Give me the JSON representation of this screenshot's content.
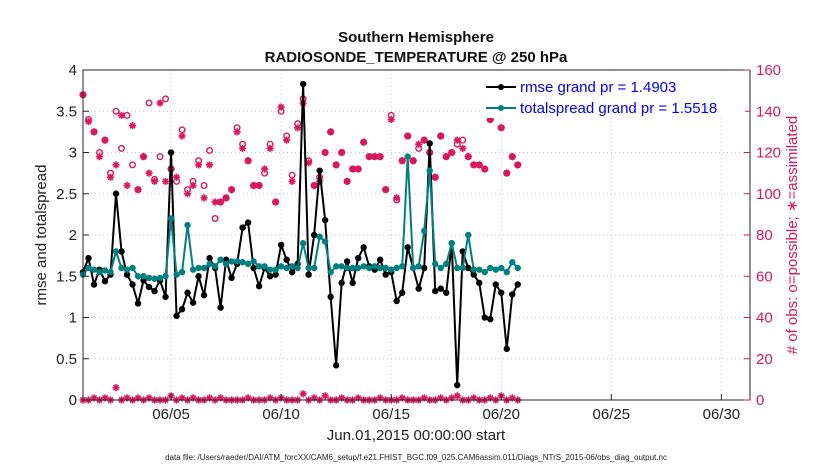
{
  "chart_data": {
    "type": "line",
    "title": "Southern Hemisphere",
    "subtitle": "RADIOSONDE_TEMPERATURE @ 250 hPa",
    "xlabel": "Jun.01,2015 00:00:00 start",
    "ylabel": "rmse and totalspread",
    "y2label": "# of obs: o=possible; ∗=assimilated",
    "footer": "data file: /Users/raeder/DAI/ATM_forcXX/CAM6_setup/f.e21.FHIST_BGC.f09_025.CAM6assim.011/Diags_NTrS_2015-06/obs_diag_output.nc",
    "xlim": [
      1.0,
      31.3
    ],
    "ylim": [
      0,
      4
    ],
    "y2lim": [
      0,
      160
    ],
    "yticks": [
      "0",
      "0.5",
      "1",
      "1.5",
      "2",
      "2.5",
      "3",
      "3.5",
      "4"
    ],
    "y2ticks": [
      "0",
      "20",
      "40",
      "60",
      "80",
      "100",
      "120",
      "140",
      "160"
    ],
    "xticks": [
      {
        "value": 5,
        "label": "06/05"
      },
      {
        "value": 10,
        "label": "06/10"
      },
      {
        "value": 15,
        "label": "06/15"
      },
      {
        "value": 20,
        "label": "06/20"
      },
      {
        "value": 25,
        "label": "06/25"
      },
      {
        "value": 30,
        "label": "06/30"
      }
    ],
    "step_days": 0.25,
    "x_start": 1.0,
    "series": [
      {
        "name": "rmse grand pr = 1.4903",
        "color": "#000000",
        "axis": "left",
        "values": [
          1.55,
          1.72,
          1.4,
          1.58,
          1.44,
          1.52,
          2.5,
          1.8,
          1.52,
          1.4,
          1.17,
          1.45,
          1.37,
          1.32,
          1.45,
          1.25,
          3.0,
          1.02,
          1.1,
          1.3,
          1.18,
          1.5,
          1.27,
          1.72,
          1.6,
          1.12,
          1.7,
          1.48,
          1.65,
          2.09,
          2.15,
          1.6,
          1.38,
          1.6,
          1.5,
          1.52,
          1.88,
          1.7,
          1.55,
          1.65,
          3.83,
          1.52,
          2.0,
          2.78,
          2.18,
          1.25,
          0.42,
          1.42,
          1.68,
          1.42,
          1.72,
          1.85,
          1.62,
          1.58,
          1.7,
          1.52,
          1.55,
          1.2,
          1.3,
          1.85,
          1.6,
          1.35,
          1.6,
          3.11,
          1.32,
          1.35,
          1.3,
          1.9,
          0.18,
          1.8,
          1.6,
          1.52,
          1.42,
          1.0,
          0.98,
          1.4,
          1.3,
          0.62,
          1.28,
          1.4
        ]
      },
      {
        "name": "totalspread grand pr = 1.5518",
        "color": "#008080",
        "axis": "left",
        "values": [
          1.52,
          1.6,
          1.58,
          1.55,
          1.57,
          1.55,
          1.8,
          1.6,
          1.58,
          1.6,
          1.5,
          1.5,
          1.48,
          1.47,
          1.48,
          1.5,
          2.2,
          1.52,
          1.55,
          2.12,
          1.58,
          1.6,
          1.6,
          1.65,
          1.62,
          1.7,
          1.65,
          1.68,
          1.68,
          1.67,
          1.65,
          1.68,
          1.62,
          1.62,
          1.58,
          1.58,
          1.62,
          1.6,
          1.62,
          1.6,
          1.9,
          1.6,
          1.6,
          1.98,
          1.92,
          1.55,
          1.62,
          1.62,
          1.6,
          1.6,
          1.6,
          1.62,
          1.6,
          1.62,
          1.6,
          1.6,
          1.58,
          1.6,
          1.62,
          2.95,
          1.6,
          1.62,
          2.05,
          2.78,
          1.65,
          1.6,
          1.65,
          1.9,
          1.6,
          1.6,
          2.0,
          1.58,
          1.58,
          1.55,
          1.6,
          1.58,
          1.6,
          1.55,
          1.67,
          1.6
        ]
      }
    ],
    "obs_possible": [
      148,
      136,
      130,
      120,
      126,
      110,
      140,
      122,
      138,
      114,
      102,
      118,
      144,
      107,
      118,
      146,
      112,
      106,
      131,
      102,
      106,
      116,
      104,
      121,
      88,
      96,
      98,
      102,
      132,
      124,
      116,
      104,
      104,
      110,
      124,
      96,
      140,
      128,
      109,
      134,
      146,
      116,
      104,
      108,
      120,
      130,
      114,
      120,
      106,
      112,
      112,
      125,
      118,
      118,
      118,
      102,
      138,
      97,
      116,
      128,
      116,
      122,
      126,
      120,
      108,
      128,
      118,
      120,
      124,
      126,
      118,
      114,
      114,
      112,
      136,
      147,
      132,
      110,
      118,
      114
    ],
    "obs_assimilated": [
      148,
      135,
      130,
      118,
      126,
      108,
      114,
      138,
      104,
      133,
      102,
      118,
      110,
      106,
      144,
      106,
      112,
      108,
      128,
      100,
      104,
      114,
      98,
      114,
      96,
      96,
      98,
      102,
      130,
      122,
      116,
      104,
      104,
      112,
      122,
      96,
      142,
      126,
      106,
      132,
      144,
      115,
      104,
      106,
      120,
      130,
      114,
      120,
      106,
      112,
      112,
      125,
      118,
      118,
      118,
      102,
      136,
      98,
      116,
      128,
      116,
      124,
      126,
      120,
      108,
      128,
      118,
      120,
      126,
      122,
      118,
      114,
      114,
      112,
      136,
      146,
      132,
      110,
      118,
      114
    ],
    "obs_low": [
      0,
      0,
      1,
      0,
      1,
      0,
      6,
      0,
      1,
      0,
      1,
      0,
      1,
      0,
      0,
      0,
      2,
      0,
      1,
      0,
      1,
      0,
      0,
      1,
      0,
      1,
      0,
      0,
      0,
      0,
      1,
      0,
      0,
      0,
      1,
      0,
      1,
      0,
      0,
      0,
      3,
      0,
      1,
      0,
      2,
      0,
      0,
      1,
      0,
      0,
      1,
      0,
      0,
      0,
      1,
      0,
      0,
      0,
      1,
      0,
      0,
      0,
      1,
      0,
      0,
      1,
      0,
      1,
      2,
      0,
      0,
      1,
      0,
      0,
      1,
      0,
      2,
      0,
      1,
      0
    ],
    "legend_position": "top-right"
  }
}
